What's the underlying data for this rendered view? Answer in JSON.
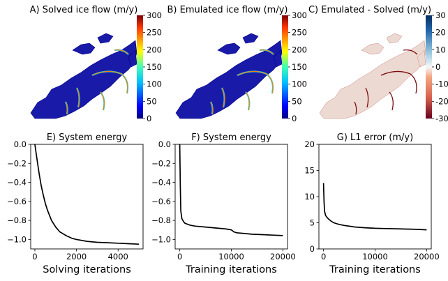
{
  "panels": {
    "A": {
      "title": "A) Solved ice flow (m/y)",
      "colorbar": {
        "ticks": [
          "300",
          "250",
          "200",
          "150",
          "100",
          "50",
          "0"
        ],
        "scheme": "jet"
      }
    },
    "B": {
      "title": "B) Emulated ice flow (m/y)",
      "colorbar": {
        "ticks": [
          "300",
          "250",
          "200",
          "150",
          "100",
          "50",
          "0"
        ],
        "scheme": "jet"
      }
    },
    "C": {
      "title": "C) Emulated - Solved (m/y)",
      "colorbar": {
        "ticks": [
          "30",
          "20",
          "10",
          "0",
          "-10",
          "-20",
          "-30"
        ],
        "scheme": "RdBu"
      }
    }
  },
  "colors": {
    "map_land": "#1a1aa8",
    "map_edge": "#000088",
    "diff_land": "#ecd9d2",
    "diff_red": "#7a0c0c",
    "line": "#000000"
  },
  "chart_data": [
    {
      "type": "line",
      "title": "E) System energy",
      "xlabel": "Solving iterations",
      "ylabel": "",
      "xlim": [
        -200,
        5200
      ],
      "ylim": [
        -1.1,
        0.0
      ],
      "xticks": [
        0,
        2000,
        4000
      ],
      "xtick_labels": [
        "0",
        "2000",
        "4000"
      ],
      "yticks": [
        0.0,
        -0.2,
        -0.4,
        -0.6,
        -0.8,
        -1.0
      ],
      "ytick_labels": [
        "0.0",
        "−0.2",
        "−0.4",
        "−0.6",
        "−0.8",
        "−1.0"
      ],
      "series": [
        {
          "x": [
            0,
            50,
            100,
            200,
            300,
            400,
            500,
            600,
            800,
            1000,
            1200,
            1500,
            1800,
            2000,
            2500,
            3000,
            3500,
            4000,
            4500,
            5000
          ],
          "y": [
            0.0,
            -0.08,
            -0.15,
            -0.3,
            -0.43,
            -0.53,
            -0.62,
            -0.69,
            -0.8,
            -0.87,
            -0.92,
            -0.96,
            -0.99,
            -1.0,
            -1.02,
            -1.03,
            -1.035,
            -1.04,
            -1.045,
            -1.05
          ]
        }
      ]
    },
    {
      "type": "line",
      "title": "F) System energy",
      "xlabel": "Training iterations",
      "ylabel": "",
      "xlim": [
        -900,
        20900
      ],
      "ylim": [
        -1.1,
        0.0
      ],
      "xticks": [
        0,
        10000,
        20000
      ],
      "xtick_labels": [
        "0",
        "10000",
        "20000"
      ],
      "yticks": [
        0.0,
        -0.2,
        -0.4,
        -0.6,
        -0.8,
        -1.0
      ],
      "ytick_labels": [
        "0.0",
        "−0.2",
        "−0.4",
        "−0.6",
        "−0.8",
        "−1.0"
      ],
      "series": [
        {
          "x": [
            0,
            100,
            200,
            400,
            700,
            1000,
            2000,
            3000,
            5000,
            7000,
            9000,
            10000,
            10500,
            11000,
            12000,
            14000,
            16000,
            18000,
            20000
          ],
          "y": [
            0.0,
            -0.45,
            -0.7,
            -0.78,
            -0.81,
            -0.83,
            -0.85,
            -0.86,
            -0.87,
            -0.88,
            -0.89,
            -0.9,
            -0.92,
            -0.93,
            -0.935,
            -0.945,
            -0.95,
            -0.955,
            -0.96
          ]
        }
      ]
    },
    {
      "type": "line",
      "title": "G) L1 error (m/y)",
      "xlabel": "Training iterations",
      "ylabel": "",
      "xlim": [
        -900,
        20900
      ],
      "ylim": [
        0,
        20
      ],
      "xticks": [
        0,
        10000,
        20000
      ],
      "xtick_labels": [
        "0",
        "10000",
        "20000"
      ],
      "yticks": [
        0,
        5,
        10,
        15,
        20
      ],
      "ytick_labels": [
        "0",
        "5",
        "10",
        "15",
        "20"
      ],
      "series": [
        {
          "x": [
            0,
            100,
            200,
            400,
            700,
            1000,
            1500,
            2000,
            3000,
            4000,
            5000,
            6000,
            8000,
            10000,
            12000,
            14000,
            16000,
            18000,
            20000
          ],
          "y": [
            12.6,
            9.0,
            7.2,
            6.4,
            6.0,
            5.7,
            5.3,
            5.0,
            4.7,
            4.5,
            4.35,
            4.2,
            4.05,
            3.95,
            3.9,
            3.85,
            3.8,
            3.75,
            3.65
          ]
        }
      ]
    }
  ]
}
